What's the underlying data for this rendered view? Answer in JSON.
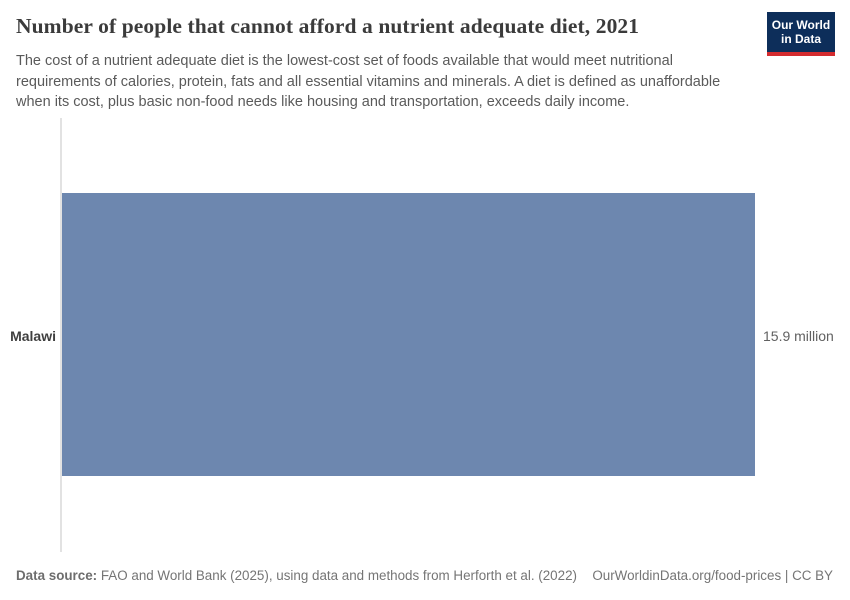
{
  "header": {
    "title": "Number of people that cannot afford a nutrient adequate diet, 2021",
    "subtitle": "The cost of a nutrient adequate diet is the lowest-cost set of foods available that would meet nutritional requirements of calories, protein, fats and all essential vitamins and minerals. A diet is defined as unaffordable when its cost, plus basic non-food needs like housing and transportation, exceeds daily income.",
    "logo_line1": "Our World",
    "logo_line2": "in Data",
    "logo_bg_color": "#0d2e5a",
    "logo_accent_color": "#d42b2f"
  },
  "chart_data": {
    "type": "bar",
    "orientation": "horizontal",
    "title": "Number of people that cannot afford a nutrient adequate diet, 2021",
    "categories": [
      "Malawi"
    ],
    "values": [
      15900000
    ],
    "value_labels": [
      "15.9 million"
    ],
    "unit": "people",
    "year": "2021",
    "xlim": [
      0,
      15900000
    ],
    "grid": false,
    "legend": "none",
    "bar_color": "#6d87af",
    "axis_line_color": "#e2e2e2"
  },
  "footer": {
    "source_label": "Data source:",
    "source_text": "FAO and World Bank (2025), using data and methods from Herforth et al. (2022)",
    "license": "OurWorldinData.org/food-prices | CC BY"
  }
}
